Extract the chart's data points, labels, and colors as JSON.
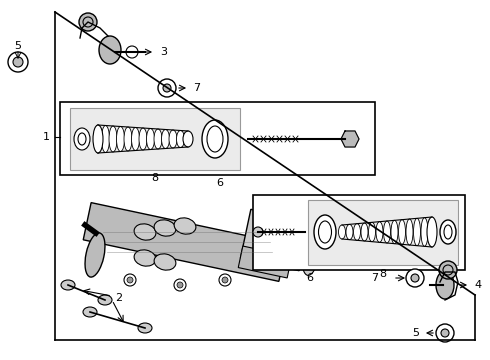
{
  "bg_color": "#ffffff",
  "line_color": "#000000",
  "light_gray": "#cccccc",
  "part_gray": "#999999",
  "mid_gray": "#bbbbbb",
  "dark_gray": "#666666",
  "fig_width": 4.9,
  "fig_height": 3.6,
  "dpi": 100
}
